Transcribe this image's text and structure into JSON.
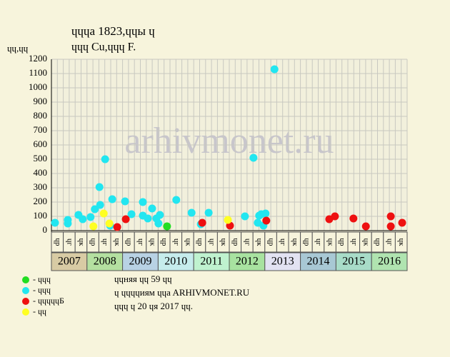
{
  "chart_data": {
    "type": "scatter",
    "title": "ɥɥɥa 1823,ɥɥы ɥ",
    "subtitle": "ɥɥɥ Cu,ɥɥɥ F.",
    "y_label": "ɥɥ,ɥɥ",
    "watermark": "arhivmonet.ru",
    "xlim": [
      2007,
      2017
    ],
    "ylim": [
      0,
      1200
    ],
    "yticks": [
      0,
      100,
      200,
      300,
      400,
      500,
      600,
      700,
      800,
      900,
      1000,
      1100,
      1200
    ],
    "grid": true,
    "categories": [
      "2007",
      "2008",
      "2009",
      "2010",
      "2011",
      "2012",
      "2013",
      "2014",
      "2015",
      "2016"
    ],
    "category_colors": [
      "#d8cba4",
      "#b4e0a0",
      "#b8d2e4",
      "#c6ecec",
      "#bff2cf",
      "#a8e2a0",
      "#e2e2f2",
      "#a8c8d4",
      "#a8dcc8",
      "#b0e4b0"
    ],
    "period_labels": [
      "ɥр",
      "ɥг",
      "ɥк"
    ],
    "series": [
      {
        "name": "- ɥɥɥ",
        "color": "#22dd22",
        "x": [
          2010.25
        ],
        "values": [
          30
        ]
      },
      {
        "name": "- ɥɥɥ",
        "color": "#22e6f0",
        "x": [
          2007.1,
          2007.46,
          2007.46,
          2007.76,
          2007.88,
          2008.1,
          2008.22,
          2008.35,
          2008.37,
          2008.51,
          2008.65,
          2008.71,
          2009.07,
          2009.25,
          2009.57,
          2009.57,
          2009.71,
          2009.83,
          2009.95,
          2010.01,
          2010.05,
          2010.51,
          2010.94,
          2011.2,
          2011.42,
          2012.44,
          2012.68,
          2012.8,
          2012.84,
          2012.9,
          2012.96,
          2013.02,
          2013.27
        ],
        "values": [
          55,
          50,
          75,
          110,
          80,
          95,
          150,
          305,
          180,
          500,
          35,
          220,
          205,
          115,
          200,
          105,
          85,
          155,
          85,
          50,
          110,
          215,
          125,
          45,
          125,
          100,
          510,
          55,
          105,
          115,
          35,
          120,
          1130
        ]
      },
      {
        "name": "- ɥɥɥɥɥБ",
        "color": "#ee1111",
        "x": [
          2008.85,
          2009.09,
          2011.24,
          2012.02,
          2013.04,
          2014.81,
          2014.97,
          2015.49,
          2015.84,
          2016.54,
          2016.54,
          2016.86
        ],
        "values": [
          25,
          80,
          55,
          35,
          70,
          80,
          100,
          85,
          30,
          100,
          30,
          55
        ]
      },
      {
        "name": "- ɥɥ",
        "color": "#ffff22",
        "x": [
          2008.18,
          2008.47,
          2008.63,
          2011.96
        ],
        "values": [
          30,
          120,
          50,
          75
        ]
      }
    ],
    "notes": [
      "ɥɥняя ɥɥ 59 ɥɥ",
      "ɥ ɥɥɥɥиям ɥɥa ARHIVMONET.RU",
      "ɥɥɥ ɥ 20 ɥя 2017 ɥɥ."
    ]
  }
}
